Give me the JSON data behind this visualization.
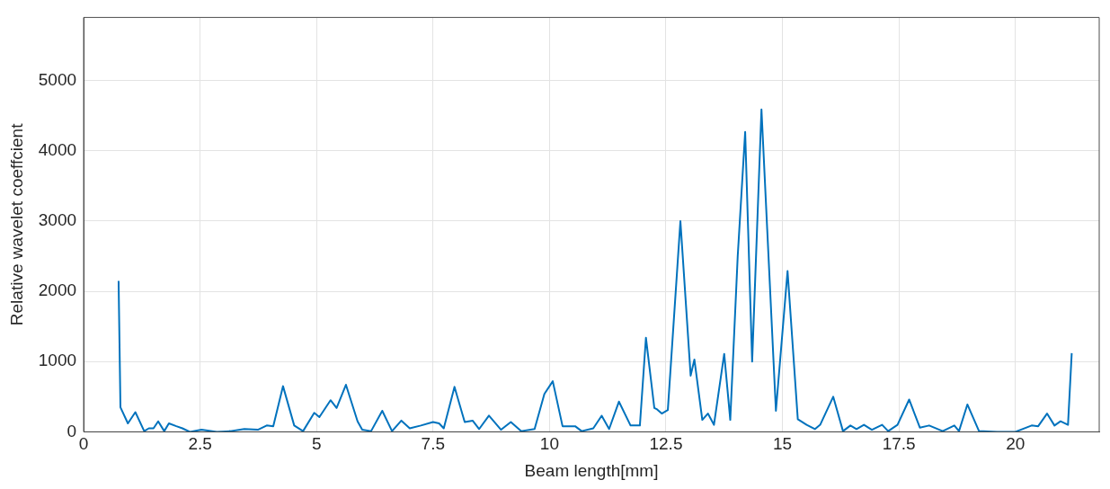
{
  "chart_data": {
    "type": "line",
    "xlabel": "Beam length[mm]",
    "ylabel": "Relative wavelet coeffcient",
    "xlim": [
      0,
      21.8
    ],
    "ylim": [
      0,
      5900
    ],
    "xticks": [
      0,
      2.5,
      5,
      7.5,
      10,
      12.5,
      15,
      17.5,
      20
    ],
    "yticks": [
      0,
      1000,
      2000,
      3000,
      4000,
      5000
    ],
    "grid": true,
    "marker": "none",
    "line_style": "solid",
    "series": [
      {
        "color": "#0072bd",
        "x": [
          0.75,
          0.79,
          0.95,
          1.11,
          1.3,
          1.4,
          1.5,
          1.6,
          1.73,
          1.83,
          1.99,
          2.12,
          2.28,
          2.53,
          2.86,
          3.15,
          3.45,
          3.74,
          3.93,
          4.07,
          4.28,
          4.52,
          4.71,
          4.95,
          5.06,
          5.3,
          5.43,
          5.63,
          5.88,
          5.98,
          6.17,
          6.41,
          6.62,
          6.82,
          7.0,
          7.24,
          7.5,
          7.63,
          7.73,
          7.96,
          8.18,
          8.35,
          8.49,
          8.7,
          8.96,
          9.17,
          9.39,
          9.68,
          9.89,
          10.07,
          10.28,
          10.55,
          10.69,
          10.94,
          11.12,
          11.28,
          11.49,
          11.74,
          11.94,
          12.07,
          12.25,
          12.31,
          12.41,
          12.54,
          12.81,
          13.03,
          13.11,
          13.28,
          13.4,
          13.53,
          13.75,
          13.88,
          14.04,
          14.2,
          14.35,
          14.55,
          14.86,
          15.11,
          15.33,
          15.52,
          15.7,
          15.81,
          16.09,
          16.3,
          16.46,
          16.59,
          16.75,
          16.92,
          17.14,
          17.27,
          17.47,
          17.72,
          17.95,
          18.15,
          18.44,
          18.69,
          18.79,
          18.97,
          19.22,
          19.61,
          20.0,
          20.35,
          20.49,
          20.68,
          20.84,
          20.97,
          21.13,
          21.21
        ],
        "values": [
          2150,
          350,
          120,
          280,
          10,
          50,
          50,
          150,
          10,
          120,
          80,
          50,
          0,
          30,
          0,
          10,
          40,
          30,
          90,
          80,
          650,
          90,
          10,
          270,
          210,
          450,
          340,
          670,
          150,
          30,
          10,
          300,
          10,
          160,
          50,
          90,
          140,
          120,
          50,
          640,
          140,
          160,
          40,
          230,
          30,
          140,
          10,
          40,
          540,
          720,
          80,
          80,
          10,
          50,
          230,
          40,
          430,
          90,
          90,
          1340,
          340,
          320,
          260,
          310,
          3000,
          800,
          1030,
          170,
          260,
          100,
          1110,
          170,
          2500,
          4270,
          1000,
          4590,
          300,
          2290,
          180,
          100,
          40,
          100,
          500,
          10,
          90,
          40,
          100,
          30,
          100,
          10,
          100,
          460,
          60,
          90,
          10,
          90,
          10,
          390,
          10,
          0,
          0,
          90,
          80,
          260,
          90,
          150,
          100,
          1120
        ]
      }
    ]
  }
}
